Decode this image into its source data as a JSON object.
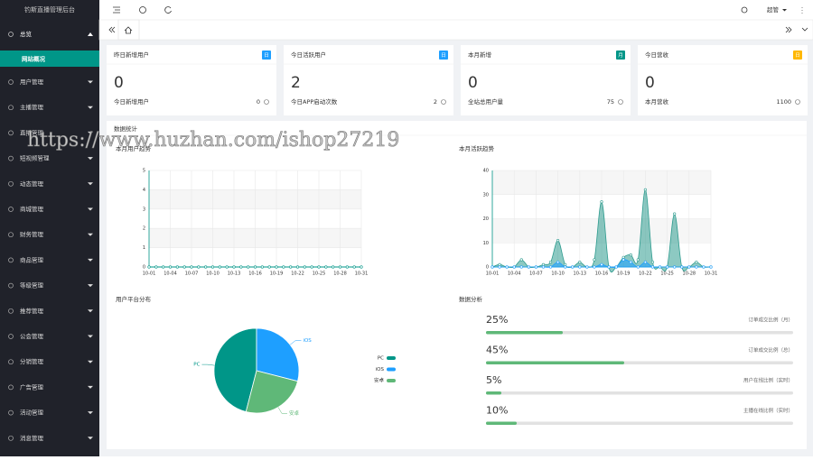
{
  "sidebar": {
    "title": "钓斯直播管理后台",
    "overview": {
      "label": "总览",
      "sub": "网站概况"
    },
    "menu": [
      "用户管理",
      "主播管理",
      "直播管理",
      "短视频管理",
      "动态管理",
      "商城管理",
      "财务管理",
      "商品管理",
      "等级管理",
      "推荐管理",
      "公会管理",
      "分销管理",
      "广告管理",
      "活动管理",
      "消息管理"
    ]
  },
  "header": {
    "user": "超管"
  },
  "cards": [
    {
      "title": "昨日新增用户",
      "badge": "日",
      "value": 0,
      "footer_label": "今日新增用户",
      "footer_value": 0
    },
    {
      "title": "今日活跃用户",
      "badge": "日",
      "value": 2,
      "footer_label": "今日APP启动次数",
      "footer_value": 2
    },
    {
      "title": "本月新增",
      "badge": "月",
      "value": 0,
      "footer_label": "全站总用户量",
      "footer_value": 75
    },
    {
      "title": "今日营收",
      "badge": "日",
      "value": 0,
      "footer_label": "本月营收",
      "footer_value": 1100
    }
  ],
  "section_title": "数据统计",
  "watermark": "https://www.huzhan.com/ishop27219",
  "chart_data": [
    {
      "type": "line",
      "title": "本月用户趋势",
      "color": "#009688",
      "categories": [
        "10-01",
        null,
        null,
        "10-04",
        null,
        null,
        "10-07",
        null,
        null,
        "10-10",
        null,
        null,
        "10-13",
        null,
        null,
        "10-16",
        null,
        null,
        "10-19",
        null,
        null,
        "10-22",
        null,
        null,
        "10-25",
        null,
        null,
        "10-28",
        null,
        null,
        "10-31"
      ],
      "values": [
        0,
        0,
        0,
        0,
        0,
        0,
        0,
        0,
        0,
        0,
        0,
        0,
        0,
        0,
        0,
        0,
        0,
        0,
        0,
        0,
        0,
        0,
        0,
        0,
        0,
        0,
        0,
        0,
        0,
        0,
        0
      ],
      "ylim": [
        0,
        5
      ],
      "yticks": [
        0,
        1,
        2,
        3,
        4,
        5
      ],
      "grid": true
    },
    {
      "type": "area",
      "title": "本月活跃趋势",
      "categories": [
        "10-01",
        null,
        null,
        "10-04",
        null,
        null,
        "10-07",
        null,
        null,
        "10-10",
        null,
        null,
        "10-13",
        null,
        null,
        "10-16",
        null,
        null,
        "10-19",
        null,
        null,
        "10-22",
        null,
        null,
        "10-25",
        null,
        null,
        "10-28",
        null,
        null,
        "10-31"
      ],
      "series": [
        {
          "color": "#2f9c8f",
          "values": [
            0,
            1,
            0,
            0,
            3,
            0,
            0,
            1,
            2,
            11,
            1,
            0,
            2,
            0,
            3,
            27,
            0,
            0,
            4,
            5,
            3,
            32,
            2,
            0,
            0,
            22,
            0,
            0,
            2,
            0,
            0
          ]
        },
        {
          "color": "#1e9fff",
          "values": [
            0,
            0,
            0,
            0,
            0,
            0,
            0,
            0,
            0,
            2,
            0,
            0,
            0,
            0,
            0,
            1,
            0,
            0,
            3,
            2,
            0,
            2,
            0,
            0,
            0,
            0,
            0,
            0,
            0,
            0,
            0
          ]
        }
      ],
      "ylim": [
        0,
        40
      ],
      "yticks": [
        0,
        10,
        20,
        30,
        40
      ],
      "grid": true
    },
    {
      "type": "pie",
      "title": "用户平台分布",
      "categories": [
        "PC",
        "iOS",
        "安卓"
      ],
      "values": [
        46,
        29,
        25
      ],
      "colors": [
        "#009688",
        "#1e9fff",
        "#5fb878"
      ]
    }
  ],
  "progress": {
    "title": "数据分析",
    "xlim": [
      0,
      100
    ],
    "color": "#5fb878",
    "items": [
      {
        "value": 25,
        "value_label": "25%",
        "label": "订单成交比例（月）"
      },
      {
        "value": 45,
        "value_label": "45%",
        "label": "订单成交比例（总）"
      },
      {
        "value": 5,
        "value_label": "5%",
        "label": "用户在线比例（实时）"
      },
      {
        "value": 10,
        "value_label": "10%",
        "label": "主播在线比例（实时）"
      }
    ]
  }
}
